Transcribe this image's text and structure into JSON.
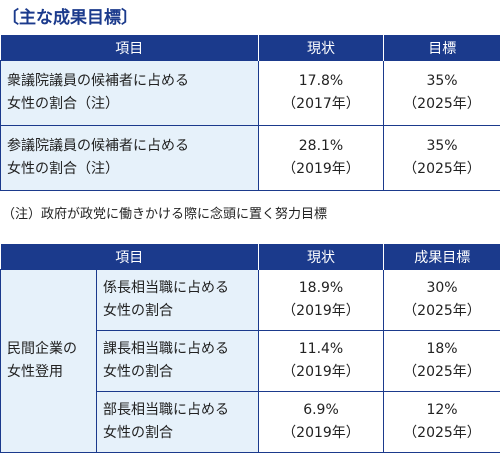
{
  "title": "〔主な成果目標〕",
  "table1": {
    "headers": [
      "項目",
      "現状",
      "目標"
    ],
    "rows": [
      {
        "item_line1": "衆議院議員の候補者に占める",
        "item_line2": "女性の割合（注）",
        "current_value": "17.8%",
        "current_year": "（2017年）",
        "target_value": "35%",
        "target_year": "（2025年）"
      },
      {
        "item_line1": "参議院議員の候補者に占める",
        "item_line2": "女性の割合（注）",
        "current_value": "28.1%",
        "current_year": "（2019年）",
        "target_value": "35%",
        "target_year": "（2025年）"
      }
    ]
  },
  "note": "（注）政府が政党に働きかける際に念頭に置く努力目標",
  "table2": {
    "headers": [
      "項目",
      "現状",
      "成果目標"
    ],
    "group_line1": "民間企業の",
    "group_line2": "女性登用",
    "rows": [
      {
        "item_line1": "係長相当職に占める",
        "item_line2": "女性の割合",
        "current_value": "18.9%",
        "current_year": "（2019年）",
        "target_value": "30%",
        "target_year": "（2025年）"
      },
      {
        "item_line1": "課長相当職に占める",
        "item_line2": "女性の割合",
        "current_value": "11.4%",
        "current_year": "（2019年）",
        "target_value": "18%",
        "target_year": "（2025年）"
      },
      {
        "item_line1": "部長相当職に占める",
        "item_line2": "女性の割合",
        "current_value": "6.9%",
        "current_year": "（2019年）",
        "target_value": "12%",
        "target_year": "（2025年）"
      }
    ]
  }
}
